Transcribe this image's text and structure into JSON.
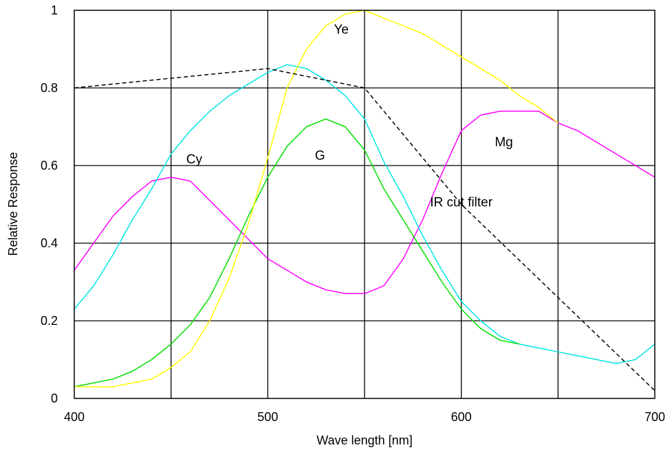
{
  "chart_data": {
    "type": "line",
    "title": "",
    "xlabel": "Wave length [nm]",
    "ylabel": "Relative Response",
    "xlim": [
      400,
      700
    ],
    "ylim": [
      0,
      1
    ],
    "grid": true,
    "x_ticks": [
      "400",
      "500",
      "600",
      "700"
    ],
    "y_ticks": [
      "0",
      "0.2",
      "0.4",
      "0.6",
      "0.8",
      "1"
    ],
    "series": [
      {
        "name": "Mg",
        "color": "#ff00ff",
        "dash": false,
        "label": {
          "text": "Mg",
          "x": 622,
          "y": 0.65
        },
        "points": [
          [
            400,
            0.33
          ],
          [
            410,
            0.4
          ],
          [
            420,
            0.47
          ],
          [
            430,
            0.52
          ],
          [
            440,
            0.56
          ],
          [
            450,
            0.57
          ],
          [
            460,
            0.56
          ],
          [
            470,
            0.51
          ],
          [
            480,
            0.46
          ],
          [
            490,
            0.41
          ],
          [
            500,
            0.36
          ],
          [
            510,
            0.33
          ],
          [
            520,
            0.3
          ],
          [
            530,
            0.28
          ],
          [
            540,
            0.27
          ],
          [
            550,
            0.27
          ],
          [
            560,
            0.29
          ],
          [
            570,
            0.36
          ],
          [
            580,
            0.46
          ],
          [
            590,
            0.58
          ],
          [
            600,
            0.69
          ],
          [
            610,
            0.73
          ],
          [
            620,
            0.74
          ],
          [
            630,
            0.74
          ],
          [
            640,
            0.74
          ],
          [
            650,
            0.71
          ],
          [
            660,
            0.69
          ],
          [
            670,
            0.66
          ],
          [
            680,
            0.63
          ],
          [
            690,
            0.6
          ],
          [
            700,
            0.57
          ]
        ]
      },
      {
        "name": "Cy",
        "color": "#00e5e5",
        "dash": false,
        "label": {
          "text": "Cy",
          "x": 462,
          "y": 0.605
        },
        "points": [
          [
            400,
            0.23
          ],
          [
            410,
            0.29
          ],
          [
            420,
            0.37
          ],
          [
            430,
            0.46
          ],
          [
            440,
            0.54
          ],
          [
            450,
            0.63
          ],
          [
            460,
            0.69
          ],
          [
            470,
            0.74
          ],
          [
            480,
            0.78
          ],
          [
            490,
            0.81
          ],
          [
            500,
            0.84
          ],
          [
            510,
            0.86
          ],
          [
            520,
            0.85
          ],
          [
            530,
            0.82
          ],
          [
            540,
            0.78
          ],
          [
            550,
            0.72
          ],
          [
            560,
            0.61
          ],
          [
            570,
            0.52
          ],
          [
            580,
            0.42
          ],
          [
            590,
            0.33
          ],
          [
            600,
            0.25
          ],
          [
            610,
            0.2
          ],
          [
            620,
            0.16
          ],
          [
            630,
            0.14
          ],
          [
            640,
            0.13
          ],
          [
            650,
            0.12
          ],
          [
            660,
            0.11
          ],
          [
            670,
            0.1
          ],
          [
            680,
            0.09
          ],
          [
            690,
            0.1
          ],
          [
            700,
            0.14
          ]
        ]
      },
      {
        "name": "G",
        "color": "#00e000",
        "dash": false,
        "label": {
          "text": "G",
          "x": 527,
          "y": 0.615
        },
        "points": [
          [
            400,
            0.03
          ],
          [
            410,
            0.04
          ],
          [
            420,
            0.05
          ],
          [
            430,
            0.07
          ],
          [
            440,
            0.1
          ],
          [
            450,
            0.14
          ],
          [
            460,
            0.19
          ],
          [
            470,
            0.26
          ],
          [
            480,
            0.36
          ],
          [
            490,
            0.47
          ],
          [
            500,
            0.57
          ],
          [
            510,
            0.65
          ],
          [
            520,
            0.7
          ],
          [
            530,
            0.72
          ],
          [
            540,
            0.7
          ],
          [
            550,
            0.64
          ],
          [
            560,
            0.54
          ],
          [
            570,
            0.46
          ],
          [
            580,
            0.38
          ],
          [
            590,
            0.3
          ],
          [
            600,
            0.23
          ],
          [
            610,
            0.18
          ],
          [
            620,
            0.15
          ],
          [
            630,
            0.14
          ]
        ]
      },
      {
        "name": "Ye",
        "color": "#ffff00",
        "dash": false,
        "label": {
          "text": "Ye",
          "x": 538,
          "y": 0.94
        },
        "points": [
          [
            400,
            0.03
          ],
          [
            410,
            0.03
          ],
          [
            420,
            0.03
          ],
          [
            430,
            0.04
          ],
          [
            440,
            0.05
          ],
          [
            450,
            0.08
          ],
          [
            460,
            0.12
          ],
          [
            470,
            0.2
          ],
          [
            480,
            0.31
          ],
          [
            490,
            0.45
          ],
          [
            500,
            0.62
          ],
          [
            510,
            0.8
          ],
          [
            520,
            0.9
          ],
          [
            530,
            0.96
          ],
          [
            540,
            0.99
          ],
          [
            550,
            1.0
          ],
          [
            560,
            0.98
          ],
          [
            570,
            0.96
          ],
          [
            580,
            0.94
          ],
          [
            590,
            0.91
          ],
          [
            600,
            0.88
          ],
          [
            610,
            0.85
          ],
          [
            620,
            0.82
          ],
          [
            630,
            0.78
          ],
          [
            640,
            0.75
          ],
          [
            650,
            0.71
          ]
        ]
      },
      {
        "name": "IR cut filter",
        "color": "#000000",
        "dash": true,
        "label": {
          "text": "IR cut filter",
          "x": 600,
          "y": 0.495
        },
        "points": [
          [
            400,
            0.8
          ],
          [
            500,
            0.85
          ],
          [
            550,
            0.8
          ],
          [
            600,
            0.5
          ],
          [
            650,
            0.26
          ],
          [
            700,
            0.02
          ]
        ]
      }
    ]
  }
}
